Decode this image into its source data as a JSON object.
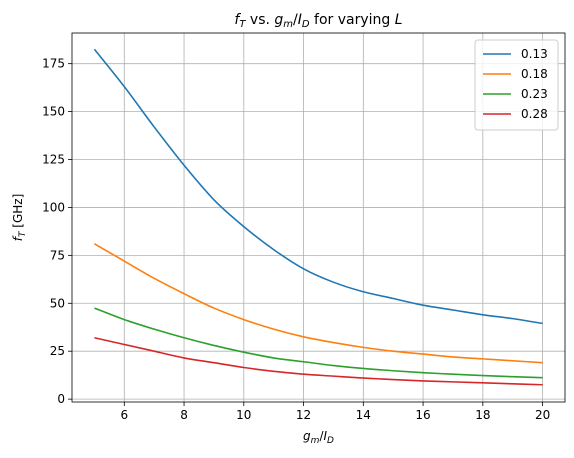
{
  "chart_data": {
    "type": "line",
    "title": "f_T vs. g_m/I_D for varying L",
    "title_parts": {
      "f": "f",
      "T": "T",
      "vs": " vs. ",
      "g": "g",
      "m": "m",
      "slash": "/",
      "I": "I",
      "D": "D",
      "for": " for varying ",
      "L": "L"
    },
    "xlabel": "g_m/I_D",
    "xlabel_parts": {
      "g": "g",
      "m": "m",
      "slash": "/",
      "I": "I",
      "D": "D"
    },
    "ylabel": "f_T [GHz]",
    "ylabel_parts": {
      "f": "f",
      "T": "T",
      "unit": " [GHz]"
    },
    "xlim": [
      4.25,
      20.75
    ],
    "ylim": [
      -1.5,
      191
    ],
    "xticks": [
      6,
      8,
      10,
      12,
      14,
      16,
      18,
      20
    ],
    "yticks": [
      0,
      25,
      50,
      75,
      100,
      125,
      150,
      175
    ],
    "grid": true,
    "legend_position": "top-right",
    "x": [
      5,
      6,
      7,
      8,
      9,
      10,
      11,
      12,
      13,
      14,
      15,
      16,
      17,
      18,
      19,
      20
    ],
    "series": [
      {
        "name": "0.13",
        "color": "#1f77b4",
        "values": [
          182.5,
          163,
          142,
          122,
          104,
          90,
          78,
          68,
          61,
          56,
          52.5,
          49,
          46.5,
          44,
          42,
          39.5
        ]
      },
      {
        "name": "0.18",
        "color": "#ff7f0e",
        "values": [
          81,
          72,
          63,
          55,
          47.5,
          41.5,
          36.5,
          32.5,
          29.5,
          27,
          25,
          23.5,
          22,
          21,
          20,
          19
        ]
      },
      {
        "name": "0.23",
        "color": "#2ca02c",
        "values": [
          47.5,
          41.5,
          36.5,
          32,
          28,
          24.5,
          21.5,
          19.5,
          17.5,
          16,
          14.8,
          13.8,
          13,
          12.3,
          11.7,
          11.2
        ]
      },
      {
        "name": "0.28",
        "color": "#d62728",
        "values": [
          32,
          28.5,
          25,
          21.5,
          19,
          16.5,
          14.5,
          13,
          12,
          11,
          10.2,
          9.5,
          9,
          8.5,
          8,
          7.5
        ]
      }
    ]
  }
}
